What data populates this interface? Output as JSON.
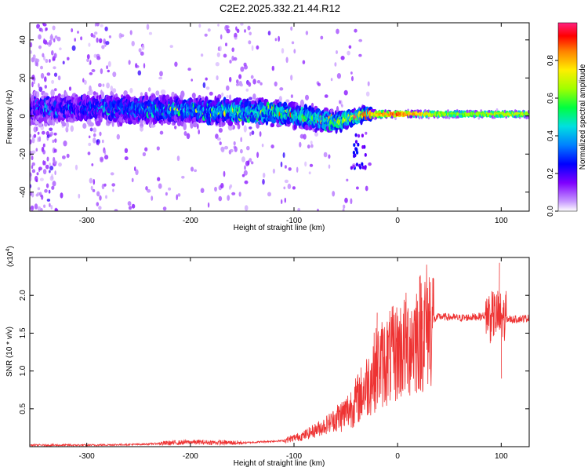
{
  "title": "C2E2.2025.332.21.44.R12",
  "chart_data": [
    {
      "type": "heatmap",
      "xlabel": "Height of straight line (km)",
      "ylabel": "Frequency (Hz)",
      "xlim": [
        -355,
        127
      ],
      "ylim": [
        -50,
        49
      ],
      "xticks": [
        -300,
        -200,
        -100,
        0,
        100
      ],
      "yticks": [
        -40,
        -20,
        0,
        20,
        40
      ],
      "colorbar": {
        "label": "Normalized spectral amplitude",
        "range": [
          0,
          1
        ],
        "ticks": [
          0.0,
          0.2,
          0.4,
          0.6,
          0.8
        ],
        "tick_labels": [
          "0.0",
          "0.2",
          "0.4",
          "0.6",
          "0.8"
        ]
      },
      "description_series": [
        {
          "name": "band_center_hz",
          "x": [
            -340,
            -280,
            -200,
            -120,
            -60,
            -30,
            0,
            50,
            127
          ],
          "values": [
            4,
            4,
            3,
            2,
            -3,
            1,
            1,
            1,
            1
          ]
        },
        {
          "name": "band_halfwidth_hz",
          "x": [
            -340,
            -280,
            -200,
            -120,
            -60,
            -30,
            0,
            50,
            127
          ],
          "values": [
            9,
            9,
            8,
            7,
            6,
            3,
            2,
            2,
            2
          ]
        },
        {
          "name": "band_peak_amplitude",
          "x": [
            -340,
            -280,
            -200,
            -120,
            -60,
            -30,
            0,
            50,
            127
          ],
          "values": [
            0.2,
            0.25,
            0.35,
            0.45,
            0.5,
            0.75,
            0.9,
            0.65,
            0.7
          ]
        }
      ]
    },
    {
      "type": "line",
      "xlabel": "Height of straight line (km)",
      "ylabel": "SNR (10 * v/v)",
      "y_multiplier": "(x10",
      "y_multiplier_exp": "4",
      "y_multiplier_close": ")",
      "xlim": [
        -355,
        127
      ],
      "ylim": [
        0,
        2.5
      ],
      "xticks": [
        -300,
        -200,
        -100,
        0,
        100
      ],
      "yticks": [
        0.5,
        1.0,
        1.5,
        2.0
      ],
      "ytick_labels": [
        "0.5",
        "1.0",
        "1.5",
        "2.0"
      ],
      "color": "#ee3333",
      "series": [
        {
          "name": "SNR envelope",
          "x": [
            -355,
            -300,
            -250,
            -200,
            -150,
            -110,
            -90,
            -70,
            -50,
            -40,
            -30,
            -20,
            -10,
            0,
            10,
            20,
            30,
            40,
            60,
            80,
            90,
            100,
            110,
            127
          ],
          "values": [
            0.02,
            0.02,
            0.03,
            0.06,
            0.05,
            0.08,
            0.15,
            0.28,
            0.45,
            0.6,
            0.8,
            1.05,
            1.15,
            1.25,
            1.35,
            1.5,
            1.63,
            1.72,
            1.7,
            1.72,
            1.75,
            1.7,
            1.68,
            1.7
          ]
        }
      ],
      "annotations": [
        {
          "x": -20,
          "value": 1.77,
          "note": "spike"
        },
        {
          "x": 98,
          "value": 2.43,
          "note": "spike"
        },
        {
          "x": 100,
          "value": 0.9,
          "note": "dip"
        }
      ]
    }
  ]
}
